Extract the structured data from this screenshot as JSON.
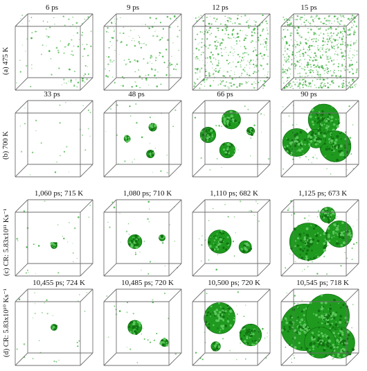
{
  "rows": [
    {
      "label": "(a) 475 K",
      "panels": [
        {
          "label": "6 ps",
          "density": 0.04,
          "clusters": []
        },
        {
          "label": "9 ps",
          "density": 0.06,
          "clusters": []
        },
        {
          "label": "12 ps",
          "density": 0.16,
          "clusters": []
        },
        {
          "label": "15 ps",
          "density": 0.26,
          "clusters": []
        }
      ]
    },
    {
      "label": "(b) 700 K",
      "panels": [
        {
          "label": "33 ps",
          "density": 0.01,
          "clusters": []
        },
        {
          "label": "48 ps",
          "density": 0.01,
          "clusters": [
            [
              0.3,
              0.5,
              0.04
            ],
            [
              0.63,
              0.35,
              0.05
            ],
            [
              0.6,
              0.7,
              0.05
            ]
          ]
        },
        {
          "label": "66 ps",
          "density": 0.01,
          "clusters": [
            [
              0.2,
              0.45,
              0.1
            ],
            [
              0.5,
              0.25,
              0.12
            ],
            [
              0.45,
              0.65,
              0.1
            ],
            [
              0.75,
              0.4,
              0.05
            ]
          ]
        },
        {
          "label": "90 ps",
          "density": 0.02,
          "clusters": [
            [
              0.55,
              0.25,
              0.2
            ],
            [
              0.2,
              0.55,
              0.18
            ],
            [
              0.7,
              0.6,
              0.2
            ],
            [
              0.45,
              0.5,
              0.12
            ]
          ]
        }
      ]
    },
    {
      "label": "(c) CR: 5.83x10¹¹ Ks⁻¹",
      "panels": [
        {
          "label": "1,060 ps; 715 K",
          "density": 0.01,
          "clusters": [
            [
              0.5,
              0.6,
              0.04
            ]
          ]
        },
        {
          "label": "1,080 ps; 710 K",
          "density": 0.01,
          "clusters": [
            [
              0.4,
              0.55,
              0.09
            ],
            [
              0.75,
              0.5,
              0.04
            ]
          ]
        },
        {
          "label": "1,110 ps; 682 K",
          "density": 0.01,
          "clusters": [
            [
              0.35,
              0.55,
              0.15
            ],
            [
              0.68,
              0.62,
              0.08
            ]
          ]
        },
        {
          "label": "1,125 ps; 673 K",
          "density": 0.02,
          "clusters": [
            [
              0.35,
              0.55,
              0.24
            ],
            [
              0.75,
              0.45,
              0.17
            ],
            [
              0.6,
              0.2,
              0.1
            ]
          ]
        }
      ]
    },
    {
      "label": "(d) CR: 5.83x10¹⁰ Ks⁻¹",
      "panels": [
        {
          "label": "10,455 ps; 724 K",
          "density": 0.01,
          "clusters": [
            [
              0.5,
              0.5,
              0.04
            ]
          ]
        },
        {
          "label": "10,485 ps; 720 K",
          "density": 0.01,
          "clusters": [
            [
              0.4,
              0.5,
              0.09
            ],
            [
              0.78,
              0.7,
              0.05
            ]
          ]
        },
        {
          "label": "10,500 ps; 720 K",
          "density": 0.01,
          "clusters": [
            [
              0.35,
              0.38,
              0.2
            ],
            [
              0.75,
              0.6,
              0.14
            ],
            [
              0.3,
              0.75,
              0.06
            ]
          ]
        },
        {
          "label": "10,545 ps; 718 K",
          "density": 0.02,
          "clusters": [
            [
              0.3,
              0.5,
              0.3
            ],
            [
              0.6,
              0.35,
              0.28
            ],
            [
              0.75,
              0.7,
              0.2
            ],
            [
              0.5,
              0.7,
              0.2
            ]
          ]
        }
      ]
    }
  ],
  "colors": {
    "atoms": "#2ea82e",
    "cluster": "#1f9a1f",
    "cluster_dark": "#127212",
    "edge": "#6e6e6e"
  }
}
